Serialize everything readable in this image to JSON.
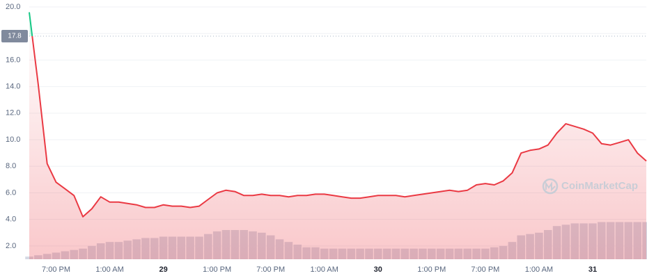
{
  "chart_data": {
    "type": "line",
    "watermark": "CoinMarketCap",
    "baseline": 17.8,
    "categories": [
      null,
      null,
      null,
      "7:00 PM",
      null,
      null,
      null,
      null,
      null,
      "1:00 AM",
      null,
      null,
      null,
      null,
      null,
      "29",
      null,
      null,
      null,
      null,
      null,
      "1:00 PM",
      null,
      null,
      null,
      null,
      null,
      "7:00 PM",
      null,
      null,
      null,
      null,
      null,
      "1:00 AM",
      null,
      null,
      null,
      null,
      null,
      "30",
      null,
      null,
      null,
      null,
      null,
      "1:00 PM",
      null,
      null,
      null,
      null,
      null,
      "7:00 PM",
      null,
      null,
      null,
      null,
      null,
      "1:00 AM",
      null,
      null,
      null,
      null,
      null,
      "31",
      null,
      null,
      null,
      null,
      null,
      null
    ],
    "bold_categories": [
      "29",
      "30",
      "31"
    ],
    "series": [
      {
        "color": "#ea3943",
        "up_color": "#16c784",
        "values": [
          19.6,
          14.2,
          8.2,
          6.8,
          6.3,
          5.8,
          4.2,
          4.8,
          5.7,
          5.3,
          5.3,
          5.2,
          5.1,
          4.9,
          4.9,
          5.1,
          5.0,
          5.0,
          4.9,
          5.0,
          5.5,
          6.0,
          6.2,
          6.1,
          5.8,
          5.8,
          5.9,
          5.8,
          5.8,
          5.7,
          5.8,
          5.8,
          5.9,
          5.9,
          5.8,
          5.7,
          5.6,
          5.6,
          5.7,
          5.8,
          5.8,
          5.8,
          5.7,
          5.8,
          5.9,
          6.0,
          6.1,
          6.2,
          6.1,
          6.2,
          6.6,
          6.7,
          6.6,
          6.9,
          7.5,
          9.0,
          9.2,
          9.3,
          9.6,
          10.5,
          11.2,
          11.0,
          10.8,
          10.5,
          9.7,
          9.6,
          9.8,
          10.0,
          9.0,
          8.4
        ]
      },
      {
        "color": "#d5d9e4",
        "values": [
          1.2,
          1.3,
          1.4,
          1.5,
          1.6,
          1.7,
          1.8,
          2.0,
          2.2,
          2.3,
          2.3,
          2.4,
          2.5,
          2.6,
          2.6,
          2.7,
          2.7,
          2.7,
          2.7,
          2.7,
          2.9,
          3.1,
          3.2,
          3.2,
          3.2,
          3.1,
          3.0,
          2.8,
          2.5,
          2.3,
          2.1,
          1.9,
          1.9,
          1.8,
          1.8,
          1.8,
          1.8,
          1.8,
          1.8,
          1.8,
          1.8,
          1.8,
          1.8,
          1.8,
          1.8,
          1.8,
          1.8,
          1.8,
          1.8,
          1.8,
          1.8,
          1.8,
          1.9,
          2.0,
          2.3,
          2.8,
          2.9,
          3.0,
          3.2,
          3.5,
          3.6,
          3.7,
          3.7,
          3.7,
          3.8,
          3.8,
          3.8,
          3.8,
          3.8,
          3.8
        ]
      }
    ],
    "ylim": [
      1,
      20
    ],
    "yticks": [
      {
        "value": 2,
        "label": "2.0"
      },
      {
        "value": 4,
        "label": "4.0"
      },
      {
        "value": 6,
        "label": "6.0"
      },
      {
        "value": 8,
        "label": "8.0"
      },
      {
        "value": 10,
        "label": "10.0"
      },
      {
        "value": 12,
        "label": "12.0"
      },
      {
        "value": 14,
        "label": "14.0"
      },
      {
        "value": 16,
        "label": "16.0"
      },
      {
        "value": 18,
        "label": "18.0"
      },
      {
        "value": 20,
        "label": "20.0"
      }
    ],
    "grid": true
  }
}
